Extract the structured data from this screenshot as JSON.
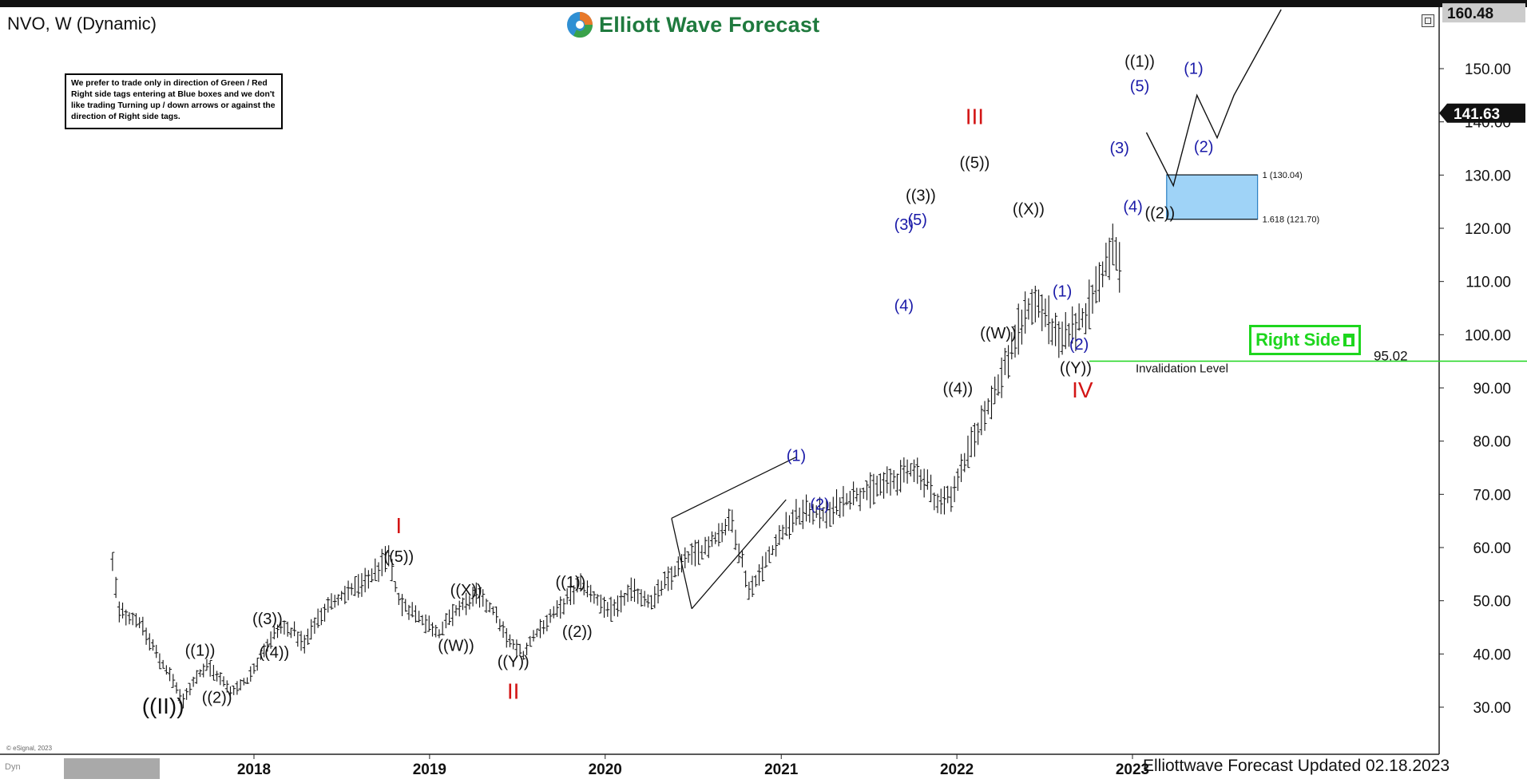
{
  "header": {
    "symbol": "NVO, W (Dynamic)",
    "logo_text": "Elliott Wave Forecast"
  },
  "note": {
    "text": "We prefer to trade only in direction of Green / Red Right side tags entering at Blue boxes and we don't like trading Turning up / down arrows or against the direction of Right side tags."
  },
  "right_side_tag": {
    "label": "Right Side",
    "color": "#1ed61e"
  },
  "footer": {
    "updated": "Elliottwave Forecast Updated 02.18.2023",
    "copyright": "© eSignal, 2023",
    "dyn_label": "Dyn"
  },
  "colors": {
    "label_black": "#111111",
    "label_blue": "#1a1aa8",
    "label_red": "#d31515",
    "blue_box": "#9fd3f7",
    "blue_box_border": "#2a7fc2",
    "invalidation": "#1ed61e",
    "current_tag_bg": "#111111",
    "footer_tag_bg": "#a9a9a9"
  },
  "chart_data": {
    "type": "ohlc",
    "xaxis": {
      "first_label": "13-03-2017",
      "labels": [
        {
          "text": "2018",
          "date": "2018-01-01"
        },
        {
          "text": "2019",
          "date": "2019-01-01"
        },
        {
          "text": "2020",
          "date": "2020-01-01"
        },
        {
          "text": "2021",
          "date": "2021-01-01"
        },
        {
          "text": "2022",
          "date": "2022-01-01"
        },
        {
          "text": "2023",
          "date": "2023-01-01"
        }
      ]
    },
    "yaxis": {
      "ticks": [
        "30.00",
        "40.00",
        "50.00",
        "60.00",
        "70.00",
        "80.00",
        "90.00",
        "100.00",
        "110.00",
        "120.00",
        "130.00",
        "140.00",
        "150.00"
      ],
      "ylim": [
        18,
        162
      ],
      "top_tag": "160.48",
      "current_tag": "141.63"
    },
    "price_path": [
      [
        "2017-03-13",
        57
      ],
      [
        "2017-03-27",
        48
      ],
      [
        "2017-05-08",
        46
      ],
      [
        "2017-06-19",
        39
      ],
      [
        "2017-07-17",
        35
      ],
      [
        "2017-08-07",
        31
      ],
      [
        "2017-08-28",
        35
      ],
      [
        "2017-09-25",
        38
      ],
      [
        "2017-10-16",
        36
      ],
      [
        "2017-11-13",
        33
      ],
      [
        "2017-12-18",
        35
      ],
      [
        "2018-01-22",
        41
      ],
      [
        "2018-02-26",
        45
      ],
      [
        "2018-03-26",
        44
      ],
      [
        "2018-04-16",
        42
      ],
      [
        "2018-05-14",
        47
      ],
      [
        "2018-06-18",
        50
      ],
      [
        "2018-07-23",
        52
      ],
      [
        "2018-08-27",
        54
      ],
      [
        "2018-09-24",
        57
      ],
      [
        "2018-10-08",
        58
      ],
      [
        "2018-10-29",
        50
      ],
      [
        "2018-11-26",
        48
      ],
      [
        "2019-01-21",
        44
      ],
      [
        "2019-02-25",
        48
      ],
      [
        "2019-04-08",
        51
      ],
      [
        "2019-05-13",
        48
      ],
      [
        "2019-06-17",
        42
      ],
      [
        "2019-07-15",
        40
      ],
      [
        "2019-08-19",
        45
      ],
      [
        "2019-09-23",
        48
      ],
      [
        "2019-10-21",
        51
      ],
      [
        "2019-11-11",
        53
      ],
      [
        "2019-12-16",
        50
      ],
      [
        "2020-01-20",
        48
      ],
      [
        "2020-02-24",
        52
      ],
      [
        "2020-04-06",
        50
      ],
      [
        "2020-05-11",
        54
      ],
      [
        "2020-06-22",
        58
      ],
      [
        "2020-07-27",
        60
      ],
      [
        "2020-08-17",
        62
      ],
      [
        "2020-09-21",
        65
      ],
      [
        "2020-10-26",
        52
      ],
      [
        "2020-11-16",
        55
      ],
      [
        "2021-01-04",
        63
      ],
      [
        "2021-02-01",
        66
      ],
      [
        "2021-03-01",
        67
      ],
      [
        "2021-04-05",
        66
      ],
      [
        "2021-05-10",
        69
      ],
      [
        "2021-06-14",
        70
      ],
      [
        "2021-07-12",
        71
      ],
      [
        "2021-08-09",
        72
      ],
      [
        "2021-09-06",
        73
      ],
      [
        "2021-10-04",
        75
      ],
      [
        "2021-11-01",
        72
      ],
      [
        "2021-11-22",
        68
      ],
      [
        "2021-12-20",
        70
      ],
      [
        "2022-01-17",
        76
      ],
      [
        "2022-02-14",
        82
      ],
      [
        "2022-03-14",
        88
      ],
      [
        "2022-04-11",
        94
      ],
      [
        "2022-05-09",
        101
      ],
      [
        "2022-06-06",
        106
      ],
      [
        "2022-07-04",
        104
      ],
      [
        "2022-08-01",
        98
      ],
      [
        "2022-08-29",
        101
      ],
      [
        "2022-09-26",
        104
      ],
      [
        "2022-10-24",
        110
      ],
      [
        "2022-11-21",
        116
      ],
      [
        "2022-12-12",
        112
      ]
    ],
    "wave_labels": [
      {
        "text": "((II))",
        "color": "black",
        "x": "2017-06-26",
        "y": 28.8,
        "size": 28
      },
      {
        "text": "((1))",
        "color": "black",
        "x": "2017-09-11",
        "y": 39.7,
        "size": 20
      },
      {
        "text": "((2))",
        "color": "black",
        "x": "2017-10-16",
        "y": 30.8,
        "size": 20
      },
      {
        "text": "((3))",
        "color": "black",
        "x": "2018-01-29",
        "y": 45.6,
        "size": 20
      },
      {
        "text": "((4))",
        "color": "black",
        "x": "2018-02-12",
        "y": 39.3,
        "size": 20
      },
      {
        "text": "I",
        "color": "red",
        "x": "2018-10-29",
        "y": 62.7,
        "size": 28
      },
      {
        "text": "((5))",
        "color": "black",
        "x": "2018-10-29",
        "y": 57.3,
        "size": 20
      },
      {
        "text": "((X))",
        "color": "black",
        "x": "2019-03-18",
        "y": 51.0,
        "size": 20
      },
      {
        "text": "((W))",
        "color": "black",
        "x": "2019-02-25",
        "y": 40.6,
        "size": 20
      },
      {
        "text": "((Y))",
        "color": "black",
        "x": "2019-06-24",
        "y": 37.6,
        "size": 20
      },
      {
        "text": "II",
        "color": "red",
        "x": "2019-06-24",
        "y": 31.6,
        "size": 28
      },
      {
        "text": "((1))",
        "color": "black",
        "x": "2019-10-21",
        "y": 52.5,
        "size": 20
      },
      {
        "text": "((2))",
        "color": "black",
        "x": "2019-11-04",
        "y": 43.2,
        "size": 20
      },
      {
        "text": "(1)",
        "color": "blue",
        "x": "2021-02-01",
        "y": 76.3,
        "size": 20
      },
      {
        "text": "(2)",
        "color": "blue",
        "x": "2021-03-22",
        "y": 67.1,
        "size": 20
      },
      {
        "text": "(3)",
        "color": "blue",
        "x": "2021-09-13",
        "y": 119.7,
        "size": 20
      },
      {
        "text": "(5)",
        "color": "blue",
        "x": "2021-10-11",
        "y": 120.6,
        "size": 20
      },
      {
        "text": "((3))",
        "color": "black",
        "x": "2021-10-18",
        "y": 125.2,
        "size": 20
      },
      {
        "text": "(4)",
        "color": "blue",
        "x": "2021-09-13",
        "y": 104.5,
        "size": 20
      },
      {
        "text": "((4))",
        "color": "black",
        "x": "2022-01-03",
        "y": 88.9,
        "size": 20
      },
      {
        "text": "III",
        "color": "red",
        "x": "2022-02-07",
        "y": 139.6,
        "size": 28
      },
      {
        "text": "((5))",
        "color": "black",
        "x": "2022-02-07",
        "y": 131.3,
        "size": 20
      },
      {
        "text": "((W))",
        "color": "black",
        "x": "2022-03-28",
        "y": 99.3,
        "size": 20
      },
      {
        "text": "((X))",
        "color": "black",
        "x": "2022-05-30",
        "y": 122.6,
        "size": 20
      },
      {
        "text": "(1)",
        "color": "blue",
        "x": "2022-08-08",
        "y": 107.2,
        "size": 20
      },
      {
        "text": "(2)",
        "color": "blue",
        "x": "2022-09-12",
        "y": 97.2,
        "size": 20
      },
      {
        "text": "((Y))",
        "color": "black",
        "x": "2022-09-05",
        "y": 92.8,
        "size": 20
      },
      {
        "text": "IV",
        "color": "red",
        "x": "2022-09-19",
        "y": 88.2,
        "size": 28
      },
      {
        "text": "(3)",
        "color": "blue",
        "x": "2022-12-05",
        "y": 134.1,
        "size": 20
      },
      {
        "text": "(4)",
        "color": "blue",
        "x": "2023-01-02",
        "y": 123.1,
        "size": 20
      },
      {
        "text": "((1))",
        "color": "black",
        "x": "2023-01-16",
        "y": 150.4,
        "size": 20
      },
      {
        "text": "(5)",
        "color": "blue",
        "x": "2023-01-16",
        "y": 145.7,
        "size": 20
      },
      {
        "text": "((2))",
        "color": "black",
        "x": "2023-02-27",
        "y": 121.9,
        "size": 20
      },
      {
        "text": "(1)",
        "color": "blue",
        "x": "2023-05-08",
        "y": 149.0,
        "size": 20
      },
      {
        "text": "(2)",
        "color": "blue",
        "x": "2023-05-29",
        "y": 134.3,
        "size": 20
      }
    ],
    "projection_path": [
      [
        "2023-01-30",
        138
      ],
      [
        "2023-03-27",
        128
      ],
      [
        "2023-05-15",
        145
      ],
      [
        "2023-06-26",
        137
      ],
      [
        "2023-07-31",
        145
      ],
      [
        "2023-11-06",
        182
      ]
    ],
    "diagonal": {
      "upper": [
        [
          "2020-05-18",
          65.5
        ],
        [
          "2021-02-01",
          77
        ]
      ],
      "lower": [
        [
          "2020-06-29",
          48.5
        ],
        [
          "2021-01-11",
          69
        ]
      ]
    },
    "blue_box": {
      "x_start": "2023-03-13",
      "x_end": "2023-09-18",
      "y_top": 130.04,
      "y_bottom": 121.7,
      "label_top": "1 (130.04)",
      "label_bottom": "1.618 (121.70)"
    },
    "invalidation": {
      "level": 95.02,
      "label": "Invalidation Level",
      "value_label": "95.02",
      "x_start": "2022-10-03",
      "x_end": "2025-11-24"
    }
  }
}
